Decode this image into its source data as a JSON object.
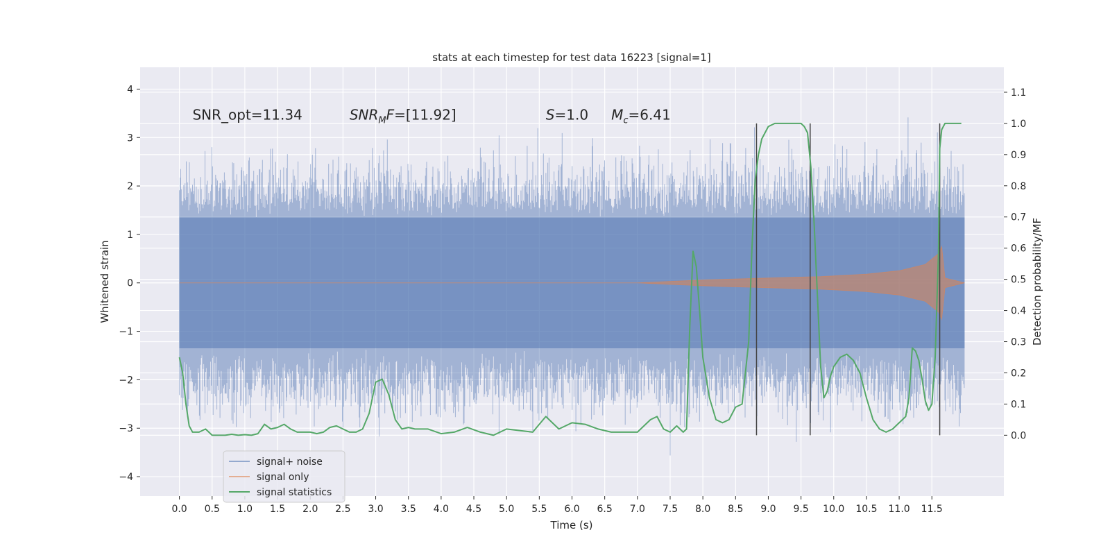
{
  "chart_data": {
    "type": "line",
    "title": "stats at each timestep for test data 16223 [signal=1]",
    "xlabel": "Time (s)",
    "ylabel_left": "Whitened strain",
    "ylabel_right": "Detection probability/MF",
    "xlim": [
      -0.6,
      12.6
    ],
    "ylim_left": [
      -4.4,
      4.45
    ],
    "ylim_right": [
      -0.195,
      1.18
    ],
    "x_ticks": [
      "0.0",
      "0.5",
      "1.0",
      "1.5",
      "2.0",
      "2.5",
      "3.0",
      "3.5",
      "4.0",
      "4.5",
      "5.0",
      "5.5",
      "6.0",
      "6.5",
      "7.0",
      "7.5",
      "8.0",
      "8.5",
      "9.0",
      "9.5",
      "10.0",
      "10.5",
      "11.0",
      "11.5"
    ],
    "y_ticks_left": [
      "4",
      "3",
      "2",
      "1",
      "0",
      "−1",
      "−2",
      "−3",
      "−4"
    ],
    "y_ticks_right": [
      "1.1",
      "1.0",
      "0.9",
      "0.8",
      "0.7",
      "0.6",
      "0.5",
      "0.4",
      "0.3",
      "0.2",
      "0.1",
      "0.0"
    ],
    "grid": true,
    "background": "#eaeaf2",
    "annotations": [
      {
        "key": "snr_opt",
        "text": "SNR_opt=11.34",
        "x": 0.2,
        "y": 3.3
      },
      {
        "key": "snr_mf",
        "text": "[11.92]",
        "x": 2.6,
        "y": 3.3
      },
      {
        "key": "s_val",
        "text": "1.0",
        "x": 5.6,
        "y": 3.3
      },
      {
        "key": "mc_val",
        "text": "6.41",
        "x": 6.6,
        "y": 3.3
      }
    ],
    "annotation_parts": {
      "snr_mf_symbol": "SNR",
      "snr_mf_sub": "M",
      "snr_mf_tail": "F=",
      "s_symbol": "S",
      "s_eq": "=",
      "mc_symbol": "M",
      "mc_sub": "c",
      "mc_eq": "="
    },
    "vertical_lines": [
      8.82,
      9.64,
      11.62
    ],
    "vertical_lines_range_prob": [
      0.0,
      1.0
    ],
    "series": [
      {
        "name": "signal+ noise",
        "color": "#4c72b0",
        "alpha": 0.5,
        "x_range": [
          0.0,
          12.0
        ],
        "core_amplitude": 1.35,
        "approx_extremes": {
          "max": 4.1,
          "min": -3.85
        }
      },
      {
        "name": "signal only",
        "color": "#dd8452",
        "alpha": 0.55,
        "envelope": [
          [
            0.0,
            0.0
          ],
          [
            7.0,
            0.0
          ],
          [
            8.0,
            0.06
          ],
          [
            9.0,
            0.1
          ],
          [
            9.8,
            0.13
          ],
          [
            10.5,
            0.18
          ],
          [
            11.0,
            0.25
          ],
          [
            11.4,
            0.38
          ],
          [
            11.6,
            0.6
          ],
          [
            11.65,
            0.75
          ],
          [
            11.7,
            0.1
          ],
          [
            12.0,
            0.0
          ]
        ]
      },
      {
        "name": "signal statistics",
        "color": "#55a868",
        "axis": "right",
        "x": [
          0.0,
          0.05,
          0.1,
          0.15,
          0.2,
          0.25,
          0.3,
          0.4,
          0.5,
          0.6,
          0.7,
          0.8,
          0.9,
          1.0,
          1.1,
          1.2,
          1.3,
          1.4,
          1.5,
          1.6,
          1.7,
          1.8,
          1.9,
          2.0,
          2.1,
          2.2,
          2.3,
          2.4,
          2.5,
          2.6,
          2.7,
          2.8,
          2.9,
          3.0,
          3.1,
          3.2,
          3.3,
          3.4,
          3.5,
          3.6,
          3.8,
          4.0,
          4.2,
          4.4,
          4.6,
          4.8,
          5.0,
          5.2,
          5.4,
          5.6,
          5.8,
          6.0,
          6.2,
          6.4,
          6.6,
          6.8,
          7.0,
          7.2,
          7.3,
          7.4,
          7.5,
          7.6,
          7.7,
          7.75,
          7.8,
          7.85,
          7.9,
          7.95,
          8.0,
          8.1,
          8.2,
          8.3,
          8.4,
          8.5,
          8.6,
          8.7,
          8.75,
          8.8,
          8.85,
          8.9,
          9.0,
          9.1,
          9.2,
          9.3,
          9.4,
          9.5,
          9.55,
          9.6,
          9.65,
          9.7,
          9.75,
          9.8,
          9.85,
          9.9,
          9.95,
          10.0,
          10.1,
          10.2,
          10.3,
          10.4,
          10.5,
          10.6,
          10.7,
          10.8,
          10.9,
          11.0,
          11.1,
          11.15,
          11.2,
          11.25,
          11.3,
          11.35,
          11.4,
          11.45,
          11.5,
          11.55,
          11.6,
          11.62,
          11.65,
          11.7,
          11.75,
          11.8,
          11.9,
          11.95
        ],
        "values": [
          0.25,
          0.2,
          0.1,
          0.03,
          0.01,
          0.01,
          0.01,
          0.02,
          0.0,
          0.0,
          0.0,
          0.003,
          0.0,
          0.002,
          0.0,
          0.005,
          0.035,
          0.02,
          0.025,
          0.035,
          0.02,
          0.01,
          0.01,
          0.01,
          0.005,
          0.01,
          0.025,
          0.03,
          0.02,
          0.01,
          0.01,
          0.02,
          0.07,
          0.17,
          0.18,
          0.13,
          0.05,
          0.02,
          0.025,
          0.02,
          0.02,
          0.005,
          0.01,
          0.025,
          0.01,
          0.0,
          0.02,
          0.015,
          0.01,
          0.06,
          0.02,
          0.04,
          0.035,
          0.02,
          0.01,
          0.01,
          0.01,
          0.05,
          0.06,
          0.02,
          0.01,
          0.03,
          0.01,
          0.02,
          0.35,
          0.59,
          0.54,
          0.4,
          0.25,
          0.12,
          0.05,
          0.04,
          0.05,
          0.09,
          0.1,
          0.3,
          0.6,
          0.82,
          0.9,
          0.95,
          0.99,
          1.0,
          1.0,
          1.0,
          1.0,
          1.0,
          0.99,
          0.97,
          0.86,
          0.68,
          0.45,
          0.22,
          0.12,
          0.14,
          0.19,
          0.22,
          0.25,
          0.26,
          0.24,
          0.2,
          0.12,
          0.05,
          0.02,
          0.01,
          0.02,
          0.04,
          0.06,
          0.12,
          0.28,
          0.27,
          0.24,
          0.18,
          0.11,
          0.08,
          0.1,
          0.25,
          0.58,
          0.92,
          0.98,
          1.0,
          1.0,
          1.0,
          1.0,
          1.0
        ]
      }
    ],
    "legend": {
      "position": "lower-left",
      "entries": [
        "signal+ noise",
        "signal only",
        "signal statistics"
      ]
    }
  }
}
